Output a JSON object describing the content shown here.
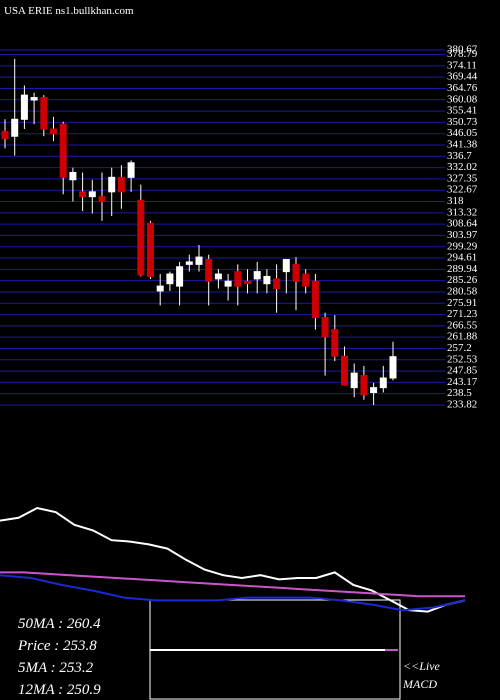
{
  "site": "USA ERIE ns1.bullkhan.com",
  "chart_data": [
    {
      "type": "candlestick",
      "ylim": [
        233.82,
        380.67
      ],
      "yticks": [
        233.82,
        238.5,
        243.17,
        247.85,
        252.53,
        257.2,
        261.88,
        266.55,
        271.23,
        275.91,
        280.58,
        285.26,
        289.94,
        294.61,
        299.29,
        303.97,
        308.64,
        313.32,
        318,
        322.67,
        327.35,
        332.02,
        336.7,
        341.38,
        346.05,
        350.73,
        355.41,
        360.08,
        364.76,
        369.44,
        374.11,
        378.79,
        380.67
      ],
      "grid": true,
      "up_color": "#ffffff",
      "down_color": "#cc0000",
      "open": [
        347,
        345,
        352,
        360,
        361,
        348,
        350,
        327,
        322,
        320,
        320,
        322,
        328,
        328,
        318.5,
        309,
        281,
        284,
        283,
        292,
        292,
        294,
        286,
        283,
        289,
        285,
        286,
        284,
        286,
        289,
        292,
        288,
        285,
        270,
        265,
        254,
        241,
        246,
        239,
        241,
        245
      ],
      "high": [
        352,
        377,
        366,
        363,
        362,
        353,
        351,
        332,
        330,
        327,
        330,
        332,
        333,
        335,
        325,
        310,
        288,
        289,
        293,
        296,
        300,
        296,
        290,
        288,
        292,
        290,
        293,
        290,
        292,
        294,
        295,
        290,
        288,
        272,
        271,
        258,
        251,
        250,
        243,
        250,
        260
      ],
      "low": [
        340,
        337,
        348,
        350,
        345,
        343,
        321,
        318,
        314,
        313,
        310,
        312,
        315,
        322,
        287,
        286,
        275,
        281,
        275,
        289,
        289,
        275,
        282,
        277,
        275,
        280,
        280,
        280,
        272,
        280,
        273,
        280,
        265,
        246,
        252,
        242,
        237,
        236,
        233.82,
        239,
        244
      ],
      "close": [
        344,
        352,
        362,
        361,
        348,
        346,
        328,
        330,
        320,
        322,
        318,
        328,
        322,
        334,
        287.6,
        287,
        283,
        288,
        291,
        293,
        295,
        285,
        288,
        285,
        283,
        284,
        289,
        287,
        282,
        294,
        285,
        283,
        270,
        262,
        254,
        242,
        247,
        238,
        241,
        245,
        253.8
      ]
    },
    {
      "type": "line",
      "ylim": [
        0,
        100
      ],
      "series": [
        {
          "color": "#ffffff",
          "values": [
            71,
            73,
            80,
            77,
            68,
            64,
            57,
            56,
            54,
            51,
            43,
            36,
            32,
            30,
            32,
            29,
            30,
            30,
            34,
            25,
            21,
            14,
            7,
            6,
            11,
            14
          ]
        },
        {
          "color": "#cc55cc",
          "values": [
            34,
            34,
            33,
            32,
            31,
            30,
            29,
            28,
            27,
            26,
            25,
            24,
            23,
            22,
            21,
            20,
            19,
            18,
            17,
            17,
            17
          ]
        },
        {
          "color": "#1a2ad0",
          "values": [
            32,
            30,
            25,
            21,
            16,
            14,
            14,
            14,
            16,
            16,
            16,
            14,
            11,
            7,
            9,
            14
          ]
        }
      ]
    }
  ],
  "legend": [
    "50MA  : 260.4",
    "Price   : 253.8",
    "5MA    : 253.2",
    "12MA  : 250.9"
  ],
  "live": "<<Live",
  "indicator": "MACD"
}
